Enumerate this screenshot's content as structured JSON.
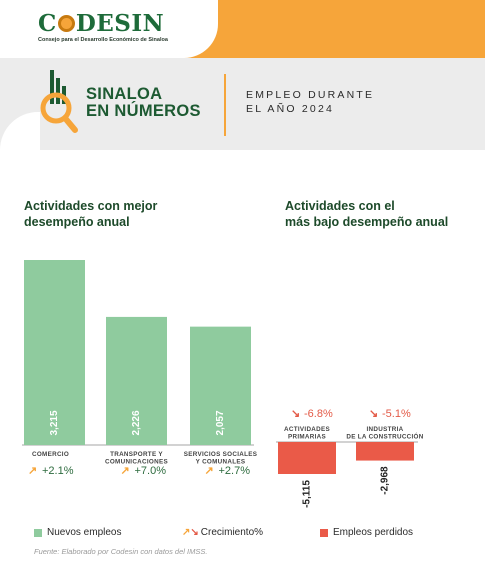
{
  "brand": {
    "logo_text": "CODESIN",
    "logo_tagline": "Consejo para el Desarrollo Económico de Sinaloa"
  },
  "header": {
    "section_title_line1": "SINALOA",
    "section_title_line2": "EN NÚMEROS",
    "subtitle_line1": "EMPLEO DURANTE",
    "subtitle_line2": "EL AÑO 2024"
  },
  "panels": {
    "left_title_line1": "Actividades con mejor",
    "left_title_line2": "desempeño anual",
    "right_title_line1": "Actividades con el",
    "right_title_line2": "más bajo desempeño anual"
  },
  "legend": {
    "new_jobs": "Nuevos empleos",
    "growth": "Crecimiento%",
    "lost_jobs": "Empleos perdidos"
  },
  "source": "Fuente: Elaborado por Codesin con datos del IMSS.",
  "colors": {
    "positive_bar": "#8fcb9e",
    "negative_bar": "#ea5a48",
    "accent_orange": "#f6a53a",
    "brand_green": "#1e6b3a"
  },
  "icons": {
    "growth_up": "arrow-up-right-icon",
    "growth_down": "arrow-down-right-icon",
    "section_icon": "magnifier-chart-icon"
  },
  "chart_data": [
    {
      "type": "bar",
      "panel": "Actividades con mejor desempeño anual",
      "categories": [
        "COMERCIO",
        "TRANSPORTE Y COMUNICACIONES",
        "SERVICIOS SOCIALES Y COMUNALES"
      ],
      "category_lines": [
        [
          "COMERCIO"
        ],
        [
          "TRANSPORTE Y",
          "COMUNICACIONES"
        ],
        [
          "SERVICIOS SOCIALES",
          "Y COMUNALES"
        ]
      ],
      "values": [
        3215,
        2226,
        2057
      ],
      "value_labels": [
        "3,215",
        "2,226",
        "2,057"
      ],
      "growth_labels": [
        "+2.1%",
        "+7.0%",
        "+2.7%"
      ]
    },
    {
      "type": "bar",
      "panel": "Actividades con el más bajo desempeño anual",
      "categories": [
        "ACTIVIDADES PRIMARIAS",
        "INDUSTRIA DE LA CONSTRUCCIÓN"
      ],
      "category_lines": [
        [
          "ACTIVIDADES",
          "PRIMARIAS"
        ],
        [
          "INDUSTRIA",
          "DE LA CONSTRUCCIÓN"
        ]
      ],
      "values": [
        -5115,
        -2968
      ],
      "value_labels": [
        "-5,115",
        "-2,968"
      ],
      "growth_labels": [
        "-6.8%",
        "-5.1%"
      ]
    }
  ]
}
